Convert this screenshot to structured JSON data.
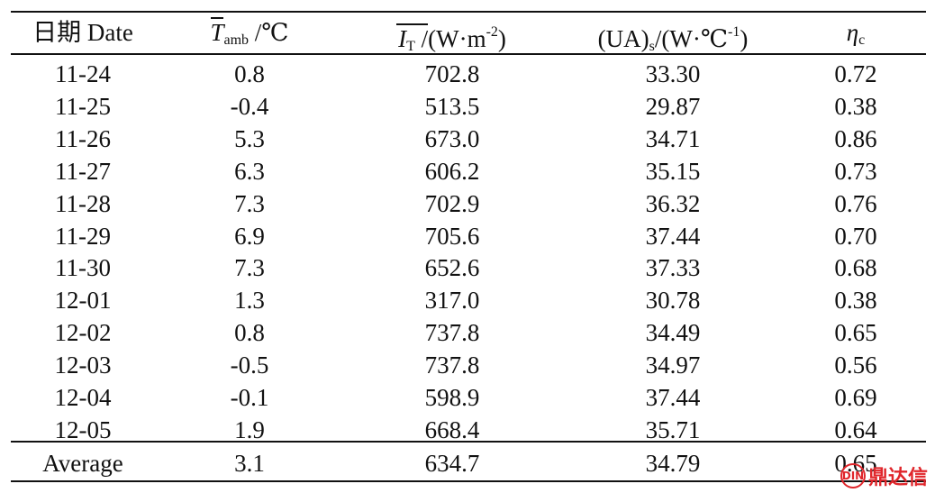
{
  "table": {
    "headers": {
      "date": "日期 Date",
      "tamb_symbol": "T",
      "tamb_sub": "amb",
      "tamb_unit": " /℃",
      "it_symbol": "I",
      "it_sub": "T",
      "it_unit": " /(W·m",
      "it_exp": "-2",
      "it_close": ")",
      "ua_main": "(UA)",
      "ua_sub": "s",
      "ua_unit": "/(W·℃",
      "ua_exp": "-1",
      "ua_close": ")",
      "eta_symbol": "η",
      "eta_sub": "c"
    },
    "rows": [
      [
        "11-24",
        "0.8",
        "702.8",
        "33.30",
        "0.72"
      ],
      [
        "11-25",
        "-0.4",
        "513.5",
        "29.87",
        "0.38"
      ],
      [
        "11-26",
        "5.3",
        "673.0",
        "34.71",
        "0.86"
      ],
      [
        "11-27",
        "6.3",
        "606.2",
        "35.15",
        "0.73"
      ],
      [
        "11-28",
        "7.3",
        "702.9",
        "36.32",
        "0.76"
      ],
      [
        "11-29",
        "6.9",
        "705.6",
        "37.44",
        "0.70"
      ],
      [
        "11-30",
        "7.3",
        "652.6",
        "37.33",
        "0.68"
      ],
      [
        "12-01",
        "1.3",
        "317.0",
        "30.78",
        "0.38"
      ],
      [
        "12-02",
        "0.8",
        "737.8",
        "34.49",
        "0.65"
      ],
      [
        "12-03",
        "-0.5",
        "737.8",
        "34.97",
        "0.56"
      ],
      [
        "12-04",
        "-0.1",
        "598.9",
        "37.44",
        "0.69"
      ],
      [
        "12-05",
        "1.9",
        "668.4",
        "35.71",
        "0.64"
      ]
    ],
    "average": [
      "Average",
      "3.1",
      "634.7",
      "34.79",
      "0.65"
    ]
  },
  "watermark": {
    "text": "鼎达信",
    "mark": "DIN",
    "color": "#e0262b"
  }
}
